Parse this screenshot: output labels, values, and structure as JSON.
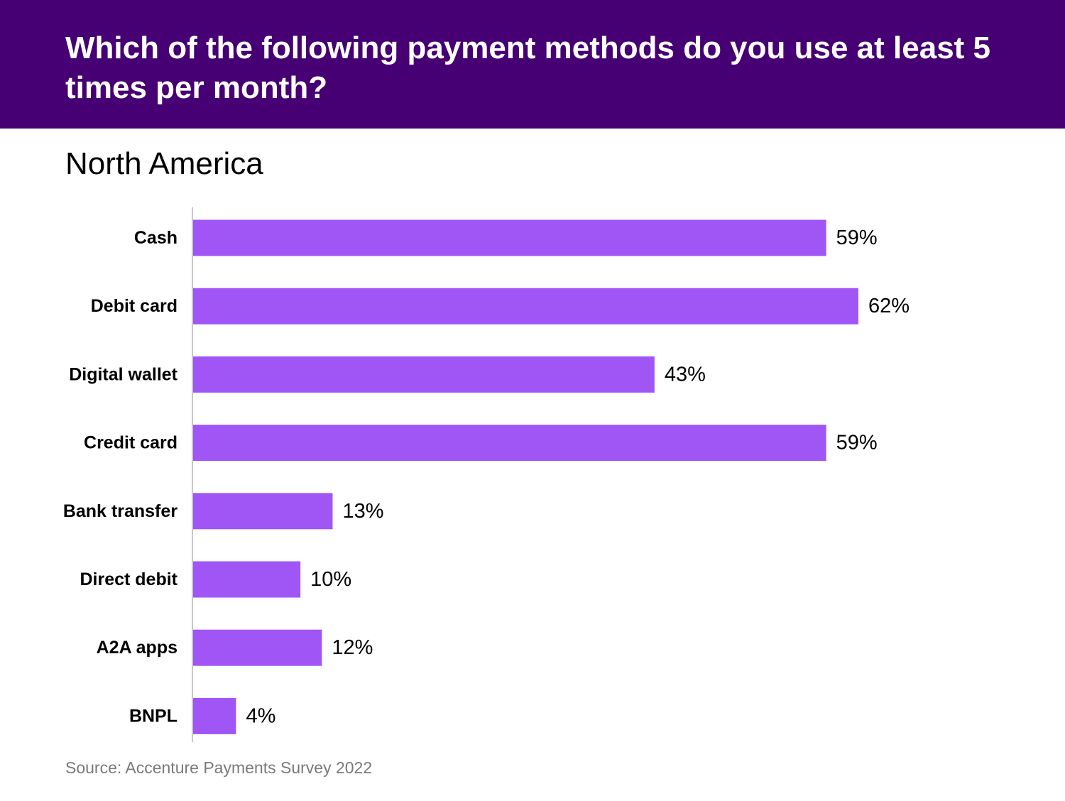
{
  "header": {
    "title": "Which of the following payment methods do you use at least 5 times per month?"
  },
  "subtitle": "North America",
  "source": "Source: Accenture Payments Survey 2022",
  "colors": {
    "header_bg": "#460073",
    "bar": "#A055F5",
    "axis": "#c8c8c8",
    "text": "#000000",
    "source_text": "#7a7a7a"
  },
  "chart_data": {
    "type": "bar",
    "orientation": "horizontal",
    "title": "Which of the following payment methods do you use at least 5 times per month?",
    "subtitle": "North America",
    "categories": [
      "Cash",
      "Debit card",
      "Digital wallet",
      "Credit card",
      "Bank transfer",
      "Direct debit",
      "A2A apps",
      "BNPL"
    ],
    "values": [
      59,
      62,
      43,
      59,
      13,
      10,
      12,
      4
    ],
    "value_labels": [
      "59%",
      "62%",
      "43%",
      "59%",
      "13%",
      "10%",
      "12%",
      "4%"
    ],
    "xlabel": "",
    "ylabel": "",
    "xlim": [
      0,
      62
    ],
    "grid": false,
    "legend": "none"
  }
}
